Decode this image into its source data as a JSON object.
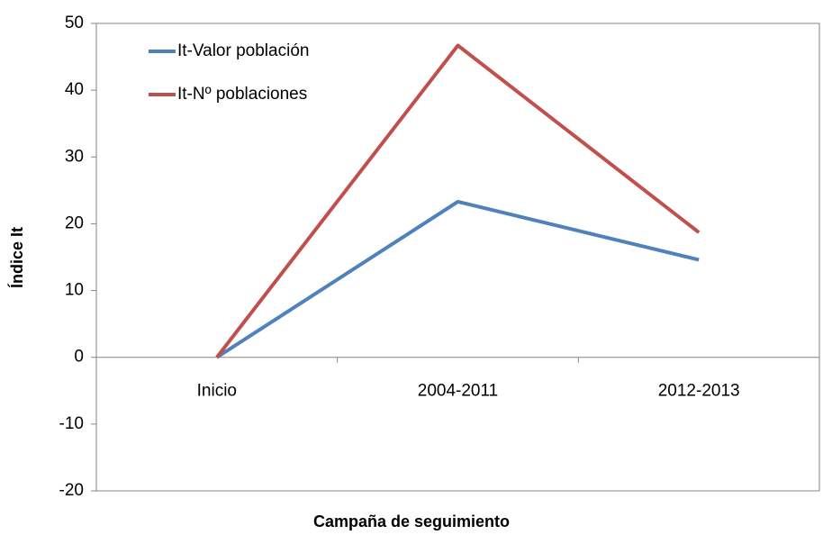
{
  "chart_data": {
    "type": "line",
    "x_label": "Campaña de seguimiento",
    "y_label": "Índice It",
    "categories": [
      "Inicio",
      "2004-2011",
      "2012-2013"
    ],
    "series": [
      {
        "name": "It-Valor población",
        "color": "#4f81bd",
        "values": [
          0,
          23.3,
          14.6
        ]
      },
      {
        "name": "It-Nº poblaciones",
        "color": "#c0504d",
        "values": [
          0,
          46.7,
          18.7
        ]
      }
    ],
    "ylim": [
      -20,
      50
    ],
    "yticks": [
      -20,
      -10,
      0,
      10,
      20,
      30,
      40,
      50
    ],
    "grid": false,
    "legend": "upper left"
  }
}
